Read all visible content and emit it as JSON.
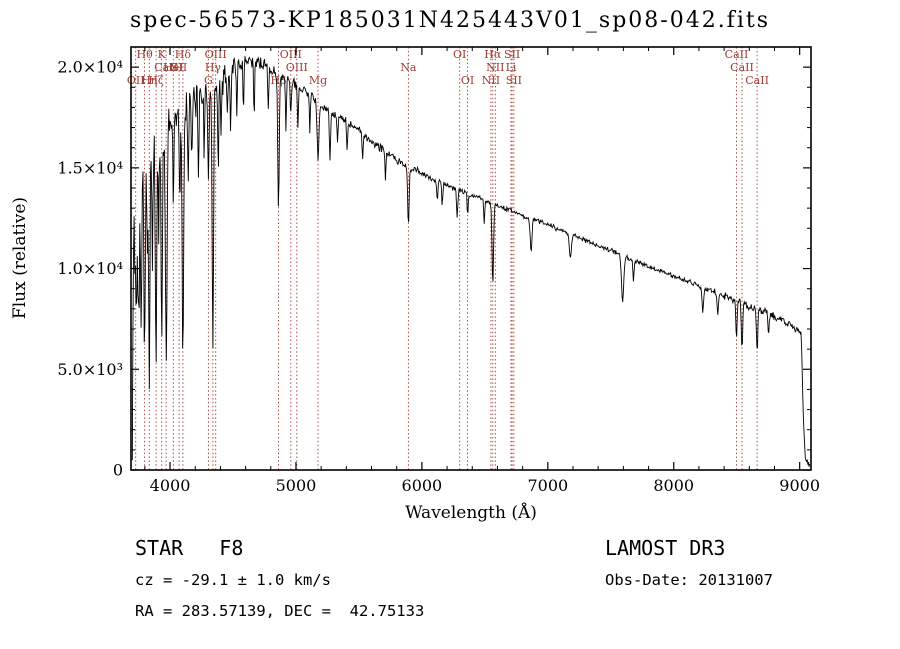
{
  "chart_data": {
    "type": "line",
    "title": "spec-56573-KP185031N425443V01_sp08-042.fits",
    "xlabel": "Wavelength (Å)",
    "ylabel": "Flux (relative)",
    "xlim": [
      3690,
      9090
    ],
    "ylim": [
      0,
      21000
    ],
    "grid": false,
    "legend": "none",
    "colors": {
      "spectrum": "#000000",
      "marker": "#a03c32",
      "axis": "#000000",
      "background": "#ffffff"
    },
    "x_ticks": {
      "values": [
        4000,
        5000,
        6000,
        7000,
        8000,
        9000
      ],
      "labels": [
        "4000",
        "5000",
        "6000",
        "7000",
        "8000",
        "9000"
      ],
      "minor_step": 200
    },
    "y_ticks": {
      "values": [
        0,
        5000,
        10000,
        15000,
        20000
      ],
      "labels": [
        "0",
        "5.0×10³",
        "1.0×10⁴",
        "1.5×10⁴",
        "2.0×10⁴"
      ],
      "minor_step": 1000
    },
    "spectral_lines": [
      {
        "wavelength": 3727,
        "label": "OII",
        "row": 3
      },
      {
        "wavelength": 3798,
        "label": "Hθ",
        "row": 1
      },
      {
        "wavelength": 3835,
        "label": "Hη",
        "row": 3
      },
      {
        "wavelength": 3889,
        "label": "Hζ",
        "row": 3
      },
      {
        "wavelength": 3934,
        "label": "K",
        "row": 1
      },
      {
        "wavelength": 3969,
        "label": "CaII",
        "row": 2
      },
      {
        "wavelength": 4026,
        "label": "HeI",
        "row": 2
      },
      {
        "wavelength": 4072,
        "label": "SII",
        "row": 2
      },
      {
        "wavelength": 4102,
        "label": "Hδ",
        "row": 1
      },
      {
        "wavelength": 4305,
        "label": "G",
        "row": 3
      },
      {
        "wavelength": 4340,
        "label": "Hγ",
        "row": 2
      },
      {
        "wavelength": 4363,
        "label": "OIII",
        "row": 1
      },
      {
        "wavelength": 4861,
        "label": "Hβ",
        "row": 3
      },
      {
        "wavelength": 4959,
        "label": "OIII",
        "row": 1
      },
      {
        "wavelength": 5007,
        "label": "OIII",
        "row": 2
      },
      {
        "wavelength": 5175,
        "label": "Mg",
        "row": 3
      },
      {
        "wavelength": 5893,
        "label": "Na",
        "row": 2
      },
      {
        "wavelength": 6300,
        "label": "OI",
        "row": 1
      },
      {
        "wavelength": 6363,
        "label": "OI",
        "row": 3
      },
      {
        "wavelength": 6548,
        "label": "NII",
        "row": 3
      },
      {
        "wavelength": 6563,
        "label": "Hα",
        "row": 1
      },
      {
        "wavelength": 6583,
        "label": "NII",
        "row": 2
      },
      {
        "wavelength": 6708,
        "label": "Li",
        "row": 2
      },
      {
        "wavelength": 6716,
        "label": "SII",
        "row": 1
      },
      {
        "wavelength": 6731,
        "label": "SII",
        "row": 3
      },
      {
        "wavelength": 8498,
        "label": "CaII",
        "row": 1
      },
      {
        "wavelength": 8542,
        "label": "CaII",
        "row": 2
      },
      {
        "wavelength": 8662,
        "label": "CaII",
        "row": 3
      }
    ],
    "spectrum": {
      "range": [
        3700,
        9080
      ],
      "sample_step": 5,
      "continuum": [
        [
          3700,
          300
        ],
        [
          3706,
          9500
        ],
        [
          3715,
          13800
        ],
        [
          3730,
          12600
        ],
        [
          3748,
          13600
        ],
        [
          3765,
          14300
        ],
        [
          3785,
          15000
        ],
        [
          3810,
          15300
        ],
        [
          3840,
          15900
        ],
        [
          3880,
          16400
        ],
        [
          3920,
          16600
        ],
        [
          3960,
          16500
        ],
        [
          4000,
          17200
        ],
        [
          4060,
          17600
        ],
        [
          4120,
          18000
        ],
        [
          4200,
          18600
        ],
        [
          4280,
          19000
        ],
        [
          4360,
          19300
        ],
        [
          4440,
          19900
        ],
        [
          4520,
          20200
        ],
        [
          4600,
          20400
        ],
        [
          4680,
          20300
        ],
        [
          4760,
          20000
        ],
        [
          4840,
          19700
        ],
        [
          4920,
          19400
        ],
        [
          5000,
          19100
        ],
        [
          5080,
          18800
        ],
        [
          5160,
          18400
        ],
        [
          5240,
          17900
        ],
        [
          5320,
          17600
        ],
        [
          5400,
          17300
        ],
        [
          5500,
          16800
        ],
        [
          5600,
          16300
        ],
        [
          5700,
          15900
        ],
        [
          5800,
          15400
        ],
        [
          5900,
          15000
        ],
        [
          6000,
          14700
        ],
        [
          6100,
          14400
        ],
        [
          6200,
          14100
        ],
        [
          6300,
          13900
        ],
        [
          6400,
          13600
        ],
        [
          6500,
          13400
        ],
        [
          6600,
          13100
        ],
        [
          6700,
          12900
        ],
        [
          6800,
          12600
        ],
        [
          6900,
          12400
        ],
        [
          7000,
          12200
        ],
        [
          7100,
          11900
        ],
        [
          7200,
          11700
        ],
        [
          7300,
          11400
        ],
        [
          7400,
          11100
        ],
        [
          7500,
          10900
        ],
        [
          7600,
          10600
        ],
        [
          7700,
          10400
        ],
        [
          7800,
          10100
        ],
        [
          7900,
          9900
        ],
        [
          8000,
          9600
        ],
        [
          8100,
          9400
        ],
        [
          8200,
          9100
        ],
        [
          8300,
          8900
        ],
        [
          8400,
          8600
        ],
        [
          8500,
          8400
        ],
        [
          8600,
          8100
        ],
        [
          8700,
          7900
        ],
        [
          8800,
          7600
        ],
        [
          8900,
          7300
        ],
        [
          8980,
          7000
        ],
        [
          9012,
          6850
        ],
        [
          9028,
          2800
        ],
        [
          9045,
          500
        ],
        [
          9080,
          220
        ]
      ],
      "absorption_features": [
        [
          3722,
          4000,
          5
        ],
        [
          3734,
          5200,
          4
        ],
        [
          3750,
          6500,
          5
        ],
        [
          3771,
          7500,
          5
        ],
        [
          3798,
          9500,
          5
        ],
        [
          3820,
          5000,
          4
        ],
        [
          3835,
          11000,
          5
        ],
        [
          3860,
          6000,
          4
        ],
        [
          3889,
          11500,
          5
        ],
        [
          3910,
          5000,
          4
        ],
        [
          3934,
          10500,
          5
        ],
        [
          3970,
          12000,
          6
        ],
        [
          4026,
          4500,
          4
        ],
        [
          4077,
          4200,
          4
        ],
        [
          4102,
          12500,
          6
        ],
        [
          4144,
          3500,
          4
        ],
        [
          4173,
          3000,
          4
        ],
        [
          4226,
          4500,
          4
        ],
        [
          4271,
          3200,
          4
        ],
        [
          4305,
          4600,
          5
        ],
        [
          4340,
          13000,
          6
        ],
        [
          4383,
          4200,
          4
        ],
        [
          4405,
          3000,
          4
        ],
        [
          4455,
          2600,
          4
        ],
        [
          4481,
          3200,
          4
        ],
        [
          4530,
          2600,
          4
        ],
        [
          4583,
          2200,
          4
        ],
        [
          4668,
          2600,
          4
        ],
        [
          4780,
          2200,
          4
        ],
        [
          4861,
          6800,
          6
        ],
        [
          4920,
          2400,
          4
        ],
        [
          4958,
          1600,
          4
        ],
        [
          5015,
          2100,
          4
        ],
        [
          5110,
          1900,
          4
        ],
        [
          5175,
          2900,
          7
        ],
        [
          5270,
          2300,
          5
        ],
        [
          5330,
          1500,
          4
        ],
        [
          5406,
          1500,
          4
        ],
        [
          5530,
          1300,
          4
        ],
        [
          5710,
          1300,
          4
        ],
        [
          5893,
          2800,
          6
        ],
        [
          6122,
          1000,
          4
        ],
        [
          6162,
          1000,
          4
        ],
        [
          6280,
          1400,
          5
        ],
        [
          6363,
          1100,
          4
        ],
        [
          6495,
          1200,
          4
        ],
        [
          6563,
          3900,
          6
        ],
        [
          6867,
          1600,
          7
        ],
        [
          7180,
          1200,
          8
        ],
        [
          7594,
          2200,
          9
        ],
        [
          7680,
          1000,
          5
        ],
        [
          8230,
          1200,
          6
        ],
        [
          8350,
          950,
          5
        ],
        [
          8498,
          1800,
          5
        ],
        [
          8542,
          2300,
          5
        ],
        [
          8662,
          2100,
          5
        ],
        [
          8752,
          950,
          5
        ]
      ],
      "noise_amplitude": [
        [
          3700,
          1500
        ],
        [
          3800,
          1500
        ],
        [
          3900,
          1350
        ],
        [
          4000,
          1150
        ],
        [
          4150,
          950
        ],
        [
          4300,
          800
        ],
        [
          4500,
          620
        ],
        [
          4700,
          480
        ],
        [
          5000,
          380
        ],
        [
          5500,
          300
        ],
        [
          6000,
          240
        ],
        [
          6500,
          200
        ],
        [
          7000,
          170
        ],
        [
          7500,
          185
        ],
        [
          8000,
          210
        ],
        [
          8500,
          260
        ],
        [
          8900,
          290
        ],
        [
          9080,
          150
        ]
      ]
    }
  },
  "annotations": {
    "class_label": "STAR   F8",
    "cz": "cz = -29.1 ± 1.0 km/s",
    "ra_dec": "RA = 283.57139, DEC =  42.75133",
    "survey": "LAMOST DR3",
    "obs_date": "Obs-Date: 20131007"
  }
}
